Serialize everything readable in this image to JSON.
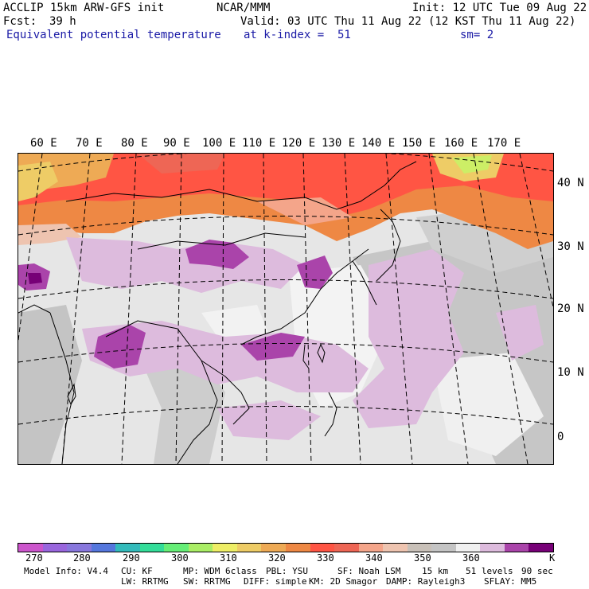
{
  "header": {
    "line1_left": "ACCLIP 15km ARW-GFS init",
    "line1_center": "NCAR/MMM",
    "line1_right": "Init: 12 UTC Tue 09 Aug 22",
    "fcst_label": "Fcst:",
    "fcst_value": "39 h",
    "valid": "Valid: 03 UTC Thu 11 Aug 22 (12 KST Thu 11 Aug 22)",
    "field_name": "Equivalent potential temperature",
    "level": "at k-index =  51",
    "smoothing": "sm= 2"
  },
  "map": {
    "lon_labels": [
      "60 E",
      "70 E",
      "80 E",
      "90 E",
      "100 E",
      "110 E",
      "120 E",
      "130 E",
      "140 E",
      "150 E",
      "160 E",
      "170 E"
    ],
    "lat_labels": [
      "40 N",
      "30 N",
      "20 N",
      "10 N",
      "0"
    ]
  },
  "colorbar": {
    "colors": [
      "#cc55cc",
      "#9966dd",
      "#8877dd",
      "#5577dd",
      "#33bbbb",
      "#33dd99",
      "#66ee77",
      "#aaee66",
      "#eeee66",
      "#eecc66",
      "#eeaa55",
      "#ee8844",
      "#ff5544",
      "#ee6655",
      "#f4a58a",
      "#eec4b0",
      "#c8c0b8",
      "#c4c4c4",
      "#f0f0f0",
      "#ddbbdd",
      "#aa44aa",
      "#770077"
    ],
    "labels": [
      "270",
      "280",
      "290",
      "300",
      "310",
      "320",
      "330",
      "340",
      "350",
      "360"
    ],
    "unit": "K"
  },
  "model_info": {
    "line1": [
      "Model Info: V4.4",
      "CU: KF",
      "MP: WDM 6class",
      "PBL: YSU",
      "SF: Noah LSM",
      "15 km",
      "51 levels",
      "90 sec"
    ],
    "line2": [
      "LW: RRTMG",
      "SW: RRTMG",
      "DIFF: simple",
      "KM: 2D Smagor",
      "DAMP: Rayleigh3",
      "SFLAY: MM5"
    ]
  }
}
